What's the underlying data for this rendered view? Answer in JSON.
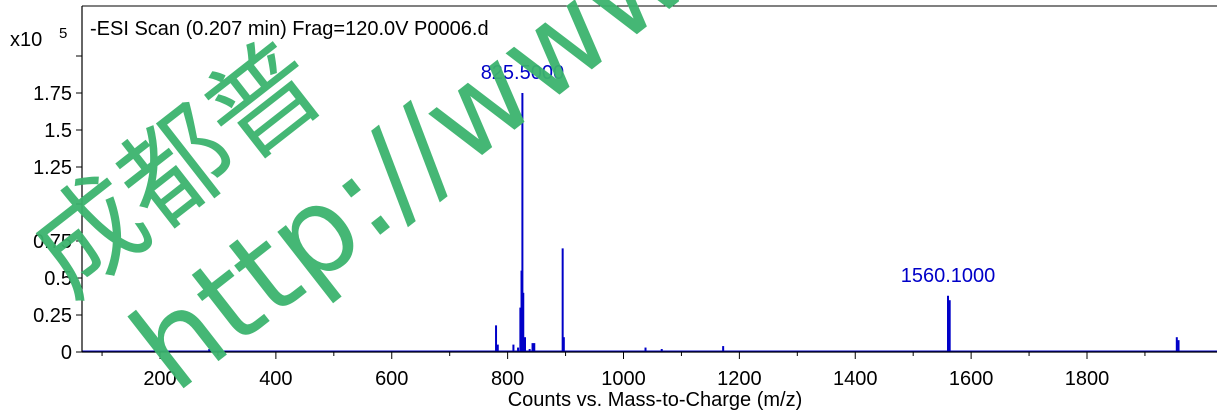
{
  "chart_data": {
    "type": "line",
    "title": "-ESI Scan (0.207 min) Frag=120.0V P0006.d",
    "xlabel": "Counts vs. Mass-to-Charge (m/z)",
    "ylabel": "",
    "y_multiplier": "x10",
    "y_exponent": "5",
    "xlim": [
      50,
      1990
    ],
    "ylim": [
      0,
      2.0
    ],
    "x_ticks": [
      200,
      400,
      600,
      800,
      1000,
      1200,
      1400,
      1600,
      1800
    ],
    "y_ticks": [
      0,
      0.25,
      0.5,
      0.75,
      1.25,
      1.5,
      1.75
    ],
    "y_tick_labels": [
      "0",
      "0.25",
      "0.5",
      "0.75",
      "1.25",
      "1.5",
      "1.75"
    ],
    "series_color": "#0000c8",
    "peak_labels": [
      {
        "x": 825.5,
        "y": 1.75,
        "text": "825.5000"
      },
      {
        "x": 1560.1,
        "y": 0.38,
        "text": "1560.1000"
      }
    ],
    "peaks": [
      {
        "x": 110,
        "y": 0.01
      },
      {
        "x": 180,
        "y": 0.01
      },
      {
        "x": 285,
        "y": 0.02
      },
      {
        "x": 401,
        "y": 0.01
      },
      {
        "x": 780,
        "y": 0.18
      },
      {
        "x": 783,
        "y": 0.05
      },
      {
        "x": 810,
        "y": 0.05
      },
      {
        "x": 818,
        "y": 0.03
      },
      {
        "x": 822,
        "y": 0.3
      },
      {
        "x": 824,
        "y": 0.55
      },
      {
        "x": 825.5,
        "y": 1.75
      },
      {
        "x": 827,
        "y": 0.4
      },
      {
        "x": 830,
        "y": 0.1
      },
      {
        "x": 838,
        "y": 0.02
      },
      {
        "x": 843,
        "y": 0.06
      },
      {
        "x": 846,
        "y": 0.06
      },
      {
        "x": 895,
        "y": 0.7
      },
      {
        "x": 897,
        "y": 0.1
      },
      {
        "x": 970,
        "y": 0.01
      },
      {
        "x": 1038,
        "y": 0.03
      },
      {
        "x": 1066,
        "y": 0.02
      },
      {
        "x": 1085,
        "y": 0.01
      },
      {
        "x": 1172,
        "y": 0.04
      },
      {
        "x": 1560.1,
        "y": 0.38
      },
      {
        "x": 1563,
        "y": 0.35
      },
      {
        "x": 1578,
        "y": 0.01
      },
      {
        "x": 1955,
        "y": 0.1
      },
      {
        "x": 1958,
        "y": 0.08
      }
    ]
  },
  "watermark": {
    "line1": "成都普",
    "line2": "http://www"
  }
}
